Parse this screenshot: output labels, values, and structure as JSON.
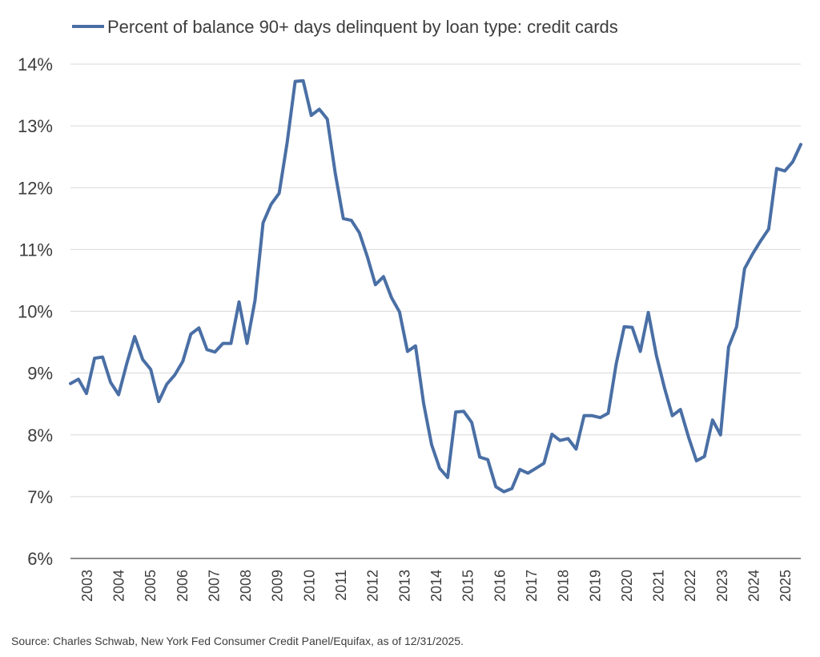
{
  "chart_data": {
    "type": "line",
    "title": "",
    "xlabel": "",
    "ylabel": "",
    "ylim": [
      6,
      14
    ],
    "yticks": [
      "6%",
      "7%",
      "8%",
      "9%",
      "10%",
      "11%",
      "12%",
      "13%",
      "14%"
    ],
    "xticks": [
      "2003",
      "2004",
      "2005",
      "2006",
      "2007",
      "2008",
      "2009",
      "2010",
      "2011",
      "2012",
      "2013",
      "2014",
      "2015",
      "2016",
      "2017",
      "2018",
      "2019",
      "2020",
      "2021",
      "2022",
      "2023",
      "2024",
      "2025"
    ],
    "grid": true,
    "legend_position": "top",
    "series": [
      {
        "name": "Percent of balance 90+ days delinquent by loan type: credit cards",
        "color": "#4a6fa5",
        "x": [
          2003.0,
          2003.25,
          2003.5,
          2003.75,
          2004.0,
          2004.25,
          2004.5,
          2004.75,
          2005.0,
          2005.25,
          2005.5,
          2005.75,
          2006.0,
          2006.25,
          2006.5,
          2006.75,
          2007.0,
          2007.25,
          2007.5,
          2007.75,
          2008.0,
          2008.25,
          2008.5,
          2008.75,
          2009.0,
          2009.25,
          2009.5,
          2009.75,
          2010.0,
          2010.25,
          2010.5,
          2010.75,
          2011.0,
          2011.25,
          2011.5,
          2011.75,
          2012.0,
          2012.25,
          2012.5,
          2012.75,
          2013.0,
          2013.25,
          2013.5,
          2013.75,
          2014.0,
          2014.25,
          2014.5,
          2014.75,
          2015.0,
          2015.25,
          2015.5,
          2015.75,
          2016.0,
          2016.25,
          2016.5,
          2016.75,
          2017.0,
          2017.25,
          2017.5,
          2017.75,
          2018.0,
          2018.25,
          2018.5,
          2018.75,
          2019.0,
          2019.25,
          2019.5,
          2019.75,
          2020.0,
          2020.25,
          2020.5,
          2020.75,
          2021.0,
          2021.25,
          2021.5,
          2021.75,
          2022.0,
          2022.25,
          2022.5,
          2022.75,
          2023.0,
          2023.25,
          2023.5,
          2023.75,
          2024.0,
          2024.25,
          2024.5,
          2024.75,
          2025.0,
          2025.25,
          2025.5,
          2025.75
        ],
        "values": [
          8.83,
          8.9,
          8.67,
          9.24,
          9.26,
          8.85,
          8.65,
          9.15,
          9.59,
          9.22,
          9.06,
          8.54,
          8.82,
          8.97,
          9.19,
          9.63,
          9.73,
          9.38,
          9.34,
          9.48,
          9.48,
          10.15,
          9.48,
          10.18,
          11.43,
          11.73,
          11.91,
          12.73,
          13.72,
          13.73,
          13.17,
          13.27,
          13.11,
          12.23,
          11.5,
          11.47,
          11.27,
          10.88,
          10.43,
          10.56,
          10.22,
          9.99,
          9.35,
          9.44,
          8.51,
          7.84,
          7.46,
          7.31,
          8.37,
          8.38,
          8.2,
          7.64,
          7.6,
          7.16,
          7.08,
          7.13,
          7.44,
          7.38,
          7.46,
          7.54,
          8.01,
          7.91,
          7.94,
          7.77,
          8.31,
          8.31,
          8.28,
          8.35,
          9.15,
          9.75,
          9.74,
          9.35,
          9.98,
          9.29,
          8.77,
          8.31,
          8.41,
          7.97,
          7.58,
          7.65,
          8.24,
          8.0,
          9.42,
          9.75,
          10.69,
          10.93,
          11.14,
          11.33,
          12.31,
          12.27,
          12.42,
          12.7
        ]
      }
    ]
  },
  "footer": {
    "source": "Source: Charles Schwab, New York Fed Consumer Credit Panel/Equifax, as of 12/31/2025."
  }
}
